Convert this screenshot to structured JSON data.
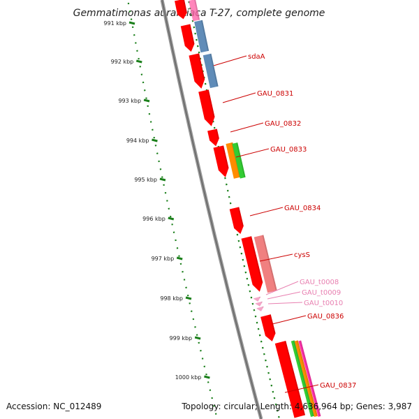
{
  "title": "Gemmatimonas aurantiaca T-27, complete genome",
  "footer": {
    "accession": "Accession: NC_012489",
    "summary": "Topology: circular; Length: 4,636,964 bp; Genes: 3,987"
  },
  "ruler": {
    "ticks": [
      "991 kbp",
      "992 kbp",
      "993 kbp",
      "994 kbp",
      "995 kbp",
      "996 kbp",
      "997 kbp",
      "998 kbp",
      "999 kbp",
      "1000 kbp"
    ]
  },
  "colors": {
    "cds": "#ff0000",
    "trna": "#f4a6c8",
    "label_cds": "#cc0000",
    "label_trna": "#e87fb0",
    "ruler": "#1a7f1a",
    "backbone": "#888888",
    "blue": "#4f7fb0",
    "pink": "#f08080",
    "orange": "#ff8c00",
    "green": "#33cc33"
  },
  "genes": [
    {
      "label": "sdaA",
      "type": "cds"
    },
    {
      "label": "GAU_0831",
      "type": "cds"
    },
    {
      "label": "GAU_0832",
      "type": "cds"
    },
    {
      "label": "GAU_0833",
      "type": "cds"
    },
    {
      "label": "GAU_0834",
      "type": "cds"
    },
    {
      "label": "cysS",
      "type": "cds"
    },
    {
      "label": "GAU_t0008",
      "type": "trna"
    },
    {
      "label": "GAU_t0009",
      "type": "trna"
    },
    {
      "label": "GAU_t0010",
      "type": "trna"
    },
    {
      "label": "GAU_0836",
      "type": "cds"
    },
    {
      "label": "GAU_0837",
      "type": "cds"
    }
  ]
}
